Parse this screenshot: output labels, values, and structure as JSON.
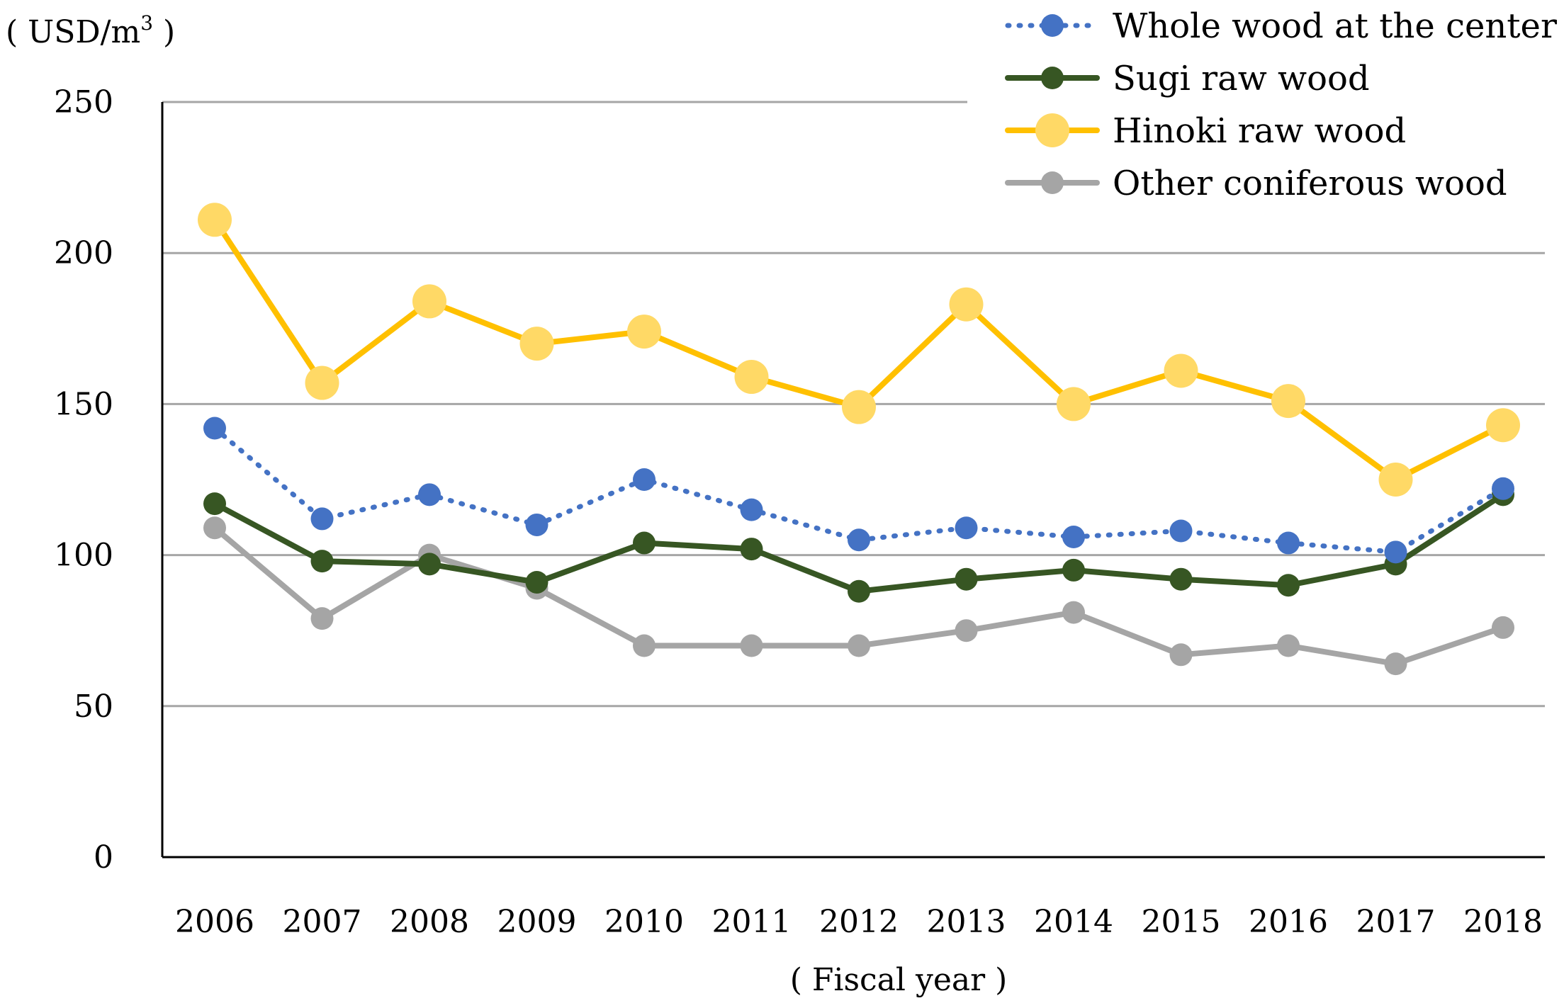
{
  "chart_data": {
    "type": "line",
    "ylabel_prefix": "( USD/m",
    "ylabel_superscript": "3",
    "ylabel_suffix": " )",
    "xlabel": "( Fiscal year )",
    "ylim": [
      0,
      250
    ],
    "yticks": [
      0,
      50,
      100,
      150,
      200,
      250
    ],
    "ytick_labels": [
      "0",
      "50",
      "100",
      "150",
      "200",
      "250"
    ],
    "grid": true,
    "legend_position": "top-right",
    "categories": [
      "2006",
      "2007",
      "2008",
      "2009",
      "2010",
      "2011",
      "2012",
      "2013",
      "2014",
      "2015",
      "2016",
      "2017",
      "2018"
    ],
    "series": [
      {
        "name": "Whole wood at the center",
        "color": "#4472C4",
        "dashed": true,
        "marker_size": "small",
        "values": [
          142,
          112,
          120,
          110,
          125,
          115,
          105,
          109,
          106,
          108,
          104,
          101,
          122
        ]
      },
      {
        "name": "Sugi raw wood",
        "color": "#375623",
        "dashed": false,
        "marker_size": "small",
        "values": [
          117,
          98,
          97,
          91,
          104,
          102,
          88,
          92,
          95,
          92,
          90,
          97,
          120
        ]
      },
      {
        "name": "Hinoki raw wood",
        "color": "#FFC000",
        "marker_color": "#FFD966",
        "dashed": false,
        "marker_size": "large",
        "values": [
          211,
          157,
          184,
          170,
          174,
          159,
          149,
          183,
          150,
          161,
          151,
          125,
          143
        ]
      },
      {
        "name": "Other coniferous wood",
        "color": "#A5A5A5",
        "dashed": false,
        "marker_size": "small",
        "values": [
          109,
          79,
          100,
          89,
          70,
          70,
          70,
          75,
          81,
          67,
          70,
          64,
          76
        ]
      }
    ]
  }
}
